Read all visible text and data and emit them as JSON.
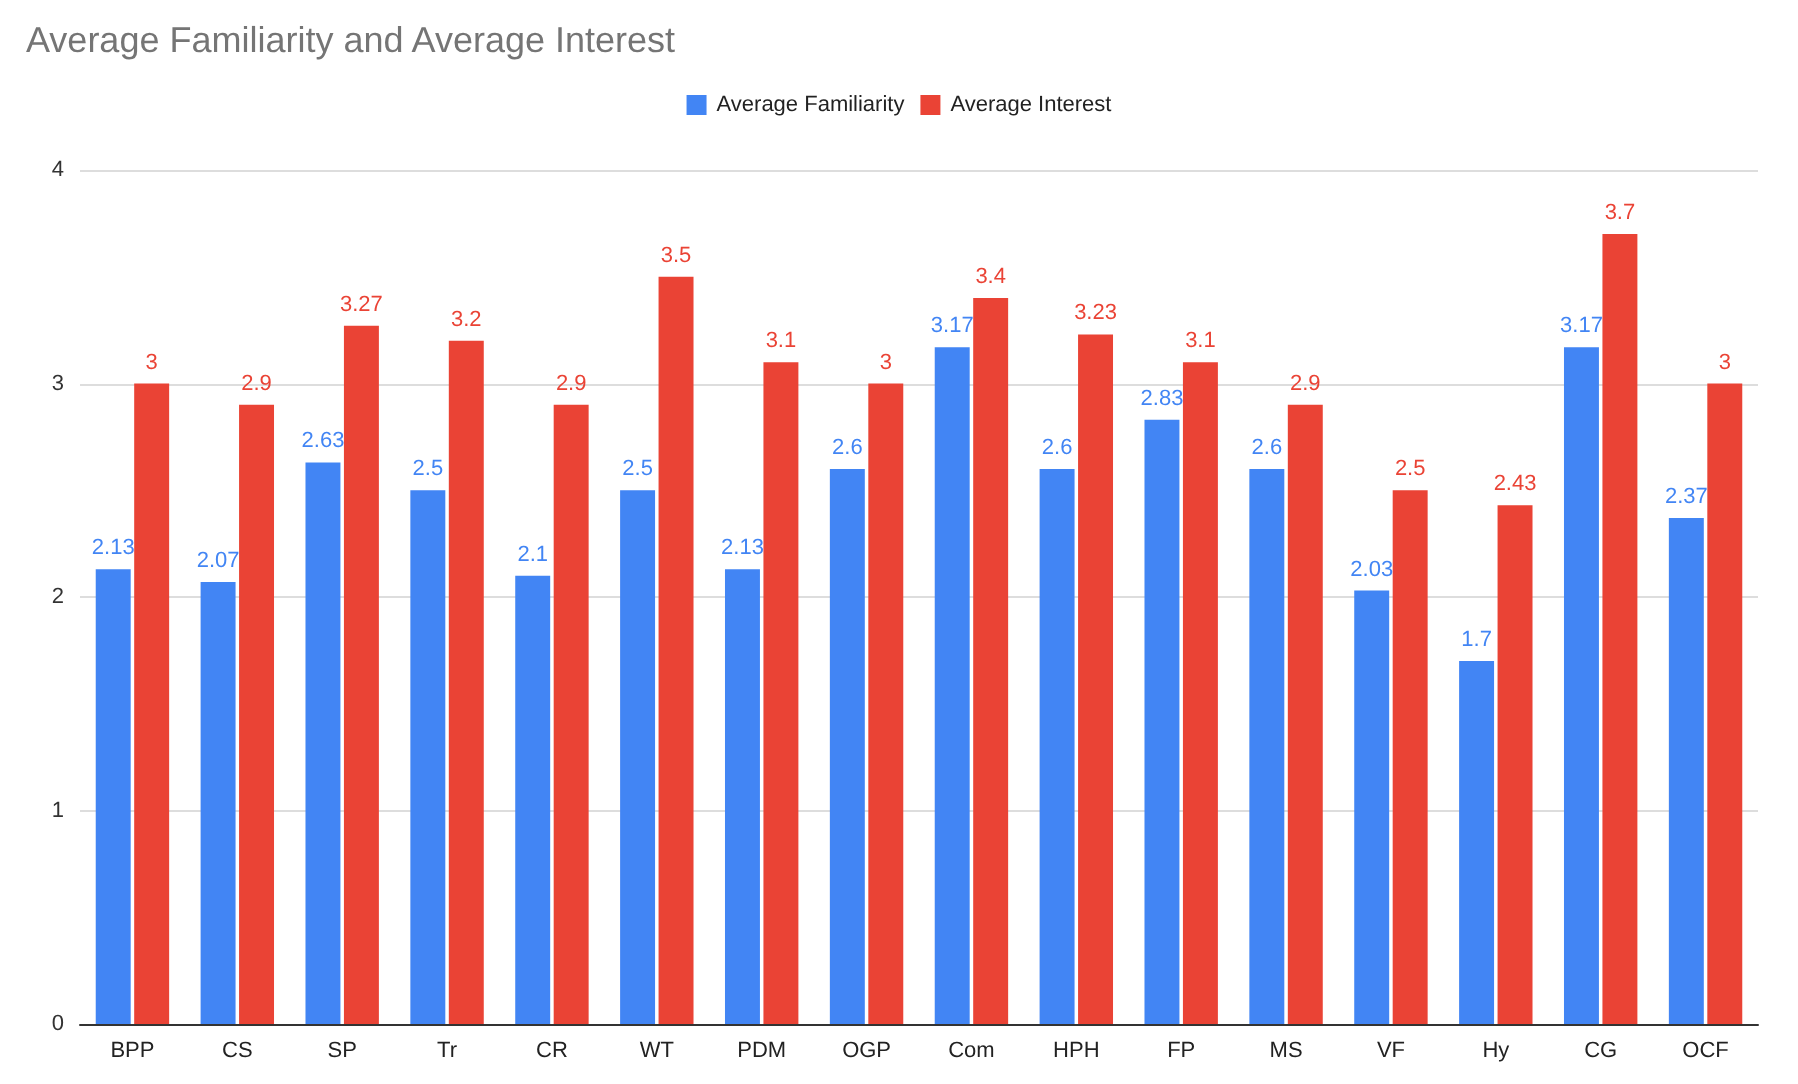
{
  "chart_data": {
    "type": "bar",
    "title": "Average Familiarity and Average Interest",
    "categories": [
      "BPP",
      "CS",
      "SP",
      "Tr",
      "CR",
      "WT",
      "PDM",
      "OGP",
      "Com",
      "HPH",
      "FP",
      "MS",
      "VF",
      "Hy",
      "CG",
      "OCF"
    ],
    "series": [
      {
        "name": "Average Familiarity",
        "color": "#4285f4",
        "values": [
          2.13,
          2.07,
          2.63,
          2.5,
          2.1,
          2.5,
          2.13,
          2.6,
          3.17,
          2.6,
          2.83,
          2.6,
          2.03,
          1.7,
          3.17,
          2.37
        ]
      },
      {
        "name": "Average Interest",
        "color": "#ea4335",
        "values": [
          3,
          2.9,
          3.27,
          3.2,
          2.9,
          3.5,
          3.1,
          3,
          3.4,
          3.23,
          3.1,
          2.9,
          2.5,
          2.43,
          3.7,
          3
        ]
      }
    ],
    "ylim": [
      0,
      4
    ],
    "yticks": [
      0,
      1,
      2,
      3,
      4
    ],
    "grid": "y",
    "legend": "top",
    "data_labels": true
  }
}
